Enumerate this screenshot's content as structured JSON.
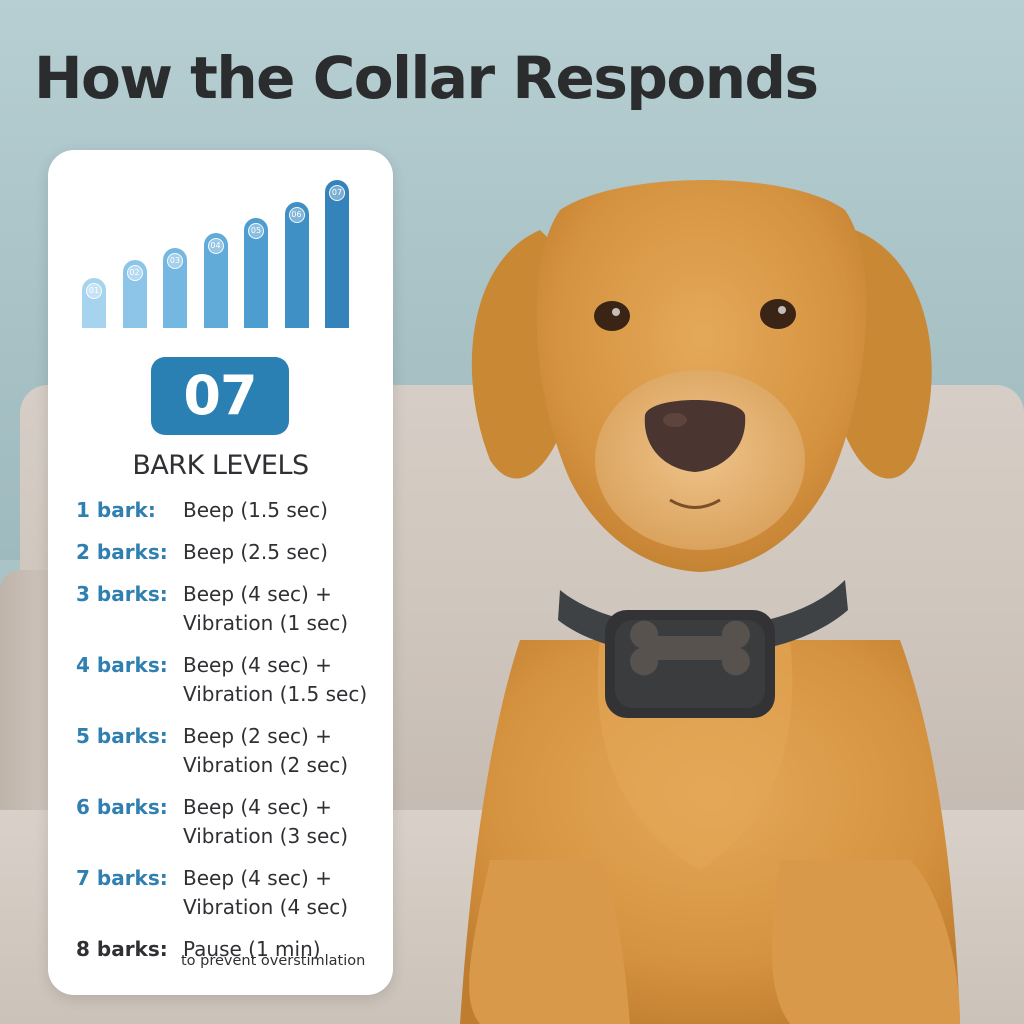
{
  "title": "How the Collar Responds",
  "chart": {
    "levels": [
      "01",
      "02",
      "03",
      "04",
      "05",
      "06",
      "07"
    ],
    "heights": [
      0.34,
      0.46,
      0.54,
      0.64,
      0.74,
      0.85,
      1.0
    ],
    "colors": [
      "#a6d3ee",
      "#8cc5e8",
      "#74b7e0",
      "#61abd9",
      "#4e9dd0",
      "#3f90c5",
      "#3484bb"
    ]
  },
  "badge_value": "07",
  "levels_heading": "BARK LEVELS",
  "levels": [
    {
      "count": "1 bark:",
      "lines": [
        "Beep (1.5 sec)"
      ]
    },
    {
      "count": "2 barks:",
      "lines": [
        "Beep (2.5 sec)"
      ]
    },
    {
      "count": "3 barks:",
      "lines": [
        "Beep (4 sec) +",
        "Vibration (1 sec)"
      ]
    },
    {
      "count": "4 barks:",
      "lines": [
        "Beep (4 sec) +",
        "Vibration (1.5 sec)"
      ]
    },
    {
      "count": "5 barks:",
      "lines": [
        "Beep (2 sec) +",
        "Vibration (2 sec)"
      ]
    },
    {
      "count": "6 barks:",
      "lines": [
        "Beep (4 sec) +",
        "Vibration (3 sec)"
      ]
    },
    {
      "count": "7 barks:",
      "lines": [
        "Beep (4 sec) +",
        "Vibration (4 sec)"
      ]
    },
    {
      "count": "8 barks:",
      "lines": [
        "Pause (1 min)"
      ],
      "dark": true
    }
  ],
  "note": "to prevent overstimlation",
  "colors": {
    "accent": "#2a7fb3",
    "label_blue": "#2f7fb0",
    "text": "#2f3033"
  }
}
